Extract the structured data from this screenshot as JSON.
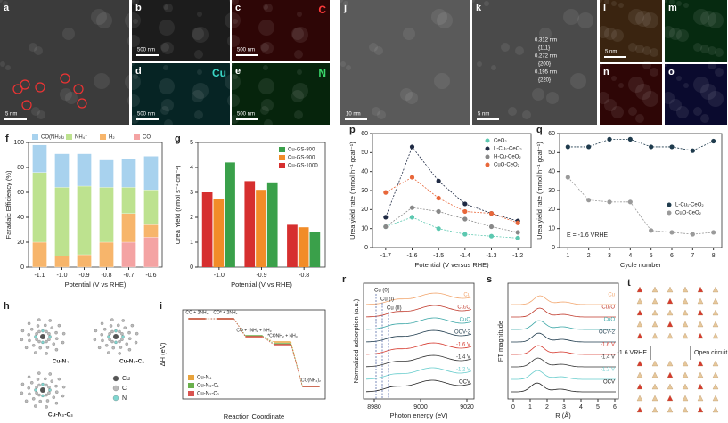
{
  "chart_data": [
    {
      "panel": "f",
      "type": "bar",
      "stacked": true,
      "categories": [
        "-1.1",
        "-1.0",
        "-0.9",
        "-0.8",
        "-0.7",
        "-0.6"
      ],
      "xlabel": "Potential (V vs RHE)",
      "ylabel": "Faradaic Efficiency (%)",
      "ylim": [
        0,
        100
      ],
      "yticks": [
        0,
        20,
        40,
        60,
        80,
        100
      ],
      "legend": "top",
      "series": [
        {
          "name": "CO(NH₂)₂",
          "color": "#a8d2ee",
          "values": [
            22,
            27,
            26,
            22,
            23,
            27
          ]
        },
        {
          "name": "NH₄⁺",
          "color": "#bde28f",
          "values": [
            56,
            55,
            55,
            44,
            21,
            28
          ]
        },
        {
          "name": "H₂",
          "color": "#f7b56b",
          "values": [
            20,
            9,
            10,
            20,
            23,
            10
          ]
        },
        {
          "name": "CO",
          "color": "#f4a3a3",
          "values": [
            0,
            0,
            0,
            0,
            20,
            24
          ]
        }
      ]
    },
    {
      "panel": "g",
      "type": "bar",
      "stacked": false,
      "categories": [
        "-1.0",
        "-0.9",
        "-0.8"
      ],
      "xlabel": "Potential (V vs RHE)",
      "ylabel": "Urea Yield (nmol s⁻¹ cm⁻²)",
      "ylim": [
        0,
        5
      ],
      "yticks": [
        0,
        1,
        2,
        3,
        4,
        5
      ],
      "legend": "upper right",
      "series": [
        {
          "name": "Cu-GS-800",
          "color": "#3aa04a",
          "values": [
            4.2,
            3.4,
            1.4
          ]
        },
        {
          "name": "Cu-GS-900",
          "color": "#f28c28",
          "values": [
            2.75,
            3.1,
            1.6
          ]
        },
        {
          "name": "Cu-GS-1000",
          "color": "#d62f2f",
          "values": [
            3.0,
            3.45,
            1.7
          ]
        }
      ]
    },
    {
      "panel": "i",
      "type": "energy",
      "categories": [
        "CO + 2NH₃",
        "CO* + 2NH₃",
        "CO + *NH₂ + NH₃",
        "*CONH₂ + NH₃",
        "CO(NH₂)₂"
      ],
      "xlabel": "Reaction Coordinate",
      "ylabel": "ΔH (eV)",
      "ylim": [
        -9,
        1
      ],
      "legend": "lower left",
      "series": [
        {
          "name": "Cu-N₄",
          "color": "#e8a33d",
          "values": [
            0,
            0,
            -2.0,
            -2.6,
            -7.6
          ]
        },
        {
          "name": "Cu-N₃-C₁",
          "color": "#6ab04c",
          "values": [
            0,
            0,
            -1.9,
            -2.8,
            -7.6
          ]
        },
        {
          "name": "Cu-N₂-C₂",
          "color": "#d9534f",
          "values": [
            0,
            0,
            -2.0,
            -2.9,
            -7.6
          ]
        }
      ]
    },
    {
      "panel": "p",
      "type": "line",
      "categories": [
        "-1.7",
        "-1.6",
        "-1.5",
        "-1.4",
        "-1.3",
        "-1.2"
      ],
      "xlabel": "Potential (V versus RHE)",
      "ylabel": "Urea yield rate (mmol h⁻¹ gcat⁻¹)",
      "ylim": [
        0,
        60
      ],
      "yticks": [
        0,
        10,
        20,
        30,
        40,
        50,
        60
      ],
      "legend": "upper right",
      "series": [
        {
          "name": "CeO₂",
          "color": "#5cc8b0",
          "values": [
            11,
            16,
            10,
            7,
            6,
            5
          ]
        },
        {
          "name": "L-Cu₁-CeO₂",
          "color": "#1f2a44",
          "values": [
            16,
            53,
            35,
            23,
            18,
            14
          ]
        },
        {
          "name": "H-Cu-CeO₂",
          "color": "#888888",
          "values": [
            11,
            21,
            19,
            15,
            11,
            8
          ]
        },
        {
          "name": "CuO-CeO₂",
          "color": "#e8673a",
          "values": [
            29,
            37,
            26,
            19,
            18,
            13
          ]
        }
      ]
    },
    {
      "panel": "q",
      "type": "line",
      "x": [
        1,
        2,
        3,
        4,
        5,
        6,
        7,
        8
      ],
      "xlim": [
        0.6,
        8.4
      ],
      "xticks": [
        1,
        2,
        3,
        4,
        5,
        6,
        7,
        8
      ],
      "xlabel": "Cycle number",
      "ylabel": "Urea yield rate (mmol h⁻¹ gcat⁻¹)",
      "ylim": [
        0,
        60
      ],
      "yticks": [
        0,
        10,
        20,
        30,
        40,
        50,
        60
      ],
      "legend": "right",
      "annotation": "E = -1.6 VRHE",
      "series": [
        {
          "name": "L-Cu₁-CeO₂",
          "color": "#1f3b4d",
          "values": [
            53,
            53,
            57,
            57,
            53,
            53,
            51,
            56
          ]
        },
        {
          "name": "CuO-CeO₂",
          "color": "#9a9a9a",
          "values": [
            37,
            25,
            24,
            24,
            9,
            8,
            7,
            8
          ]
        }
      ]
    }
  ],
  "images": [
    {
      "panel": "a",
      "scale": "5 nm"
    },
    {
      "panel": "b",
      "scale": "500 nm"
    },
    {
      "panel": "c",
      "element": "C",
      "scale": "500 nm"
    },
    {
      "panel": "d",
      "element": "Cu",
      "scale": "500 nm"
    },
    {
      "panel": "e",
      "element": "N",
      "scale": "500 nm"
    },
    {
      "panel": "j",
      "scale": "10 nm"
    },
    {
      "panel": "k",
      "scale": "5 nm",
      "annotations": [
        "0.312 nm",
        "{111}",
        "0.272 nm",
        "{200}",
        "0.195 nm",
        "{220}"
      ]
    },
    {
      "panel": "l",
      "scale": "5 nm"
    },
    {
      "panel": "m"
    },
    {
      "panel": "n"
    },
    {
      "panel": "o"
    }
  ],
  "structures": {
    "panel": "h",
    "names": [
      "Cu-N₄",
      "Cu-N₃-C₁",
      "Cu-N₂-C₂"
    ],
    "legend": [
      "Cu",
      "C",
      "N"
    ]
  },
  "spectra": [
    {
      "panel": "r",
      "xlabel": "Photon energy (eV)",
      "ylabel": "Normalized adsorption (a.u.)",
      "xticks": [
        8980,
        9000,
        9020
      ],
      "markers": [
        "Cu (0)",
        "Cu (I)",
        "Cu (II)"
      ],
      "curves": [
        "Cu",
        "Cu₂O",
        "CuO",
        "OCV-2",
        "-1.6 V",
        "-1.4 V",
        "-1.2 V",
        "OCV"
      ]
    },
    {
      "panel": "s",
      "xlabel": "R (Å)",
      "ylabel": "FT magnitude",
      "xticks": [
        0,
        1,
        2,
        3,
        4,
        5,
        6
      ],
      "curves": [
        "Cu",
        "Cu₂O",
        "CuO",
        "OCV-2",
        "-1.6 V",
        "-1.4 V",
        "-1.2 V",
        "OCV"
      ]
    }
  ],
  "schematic": {
    "panel": "t",
    "labels": [
      "-1.6 VRHE",
      "Open circuit"
    ]
  }
}
